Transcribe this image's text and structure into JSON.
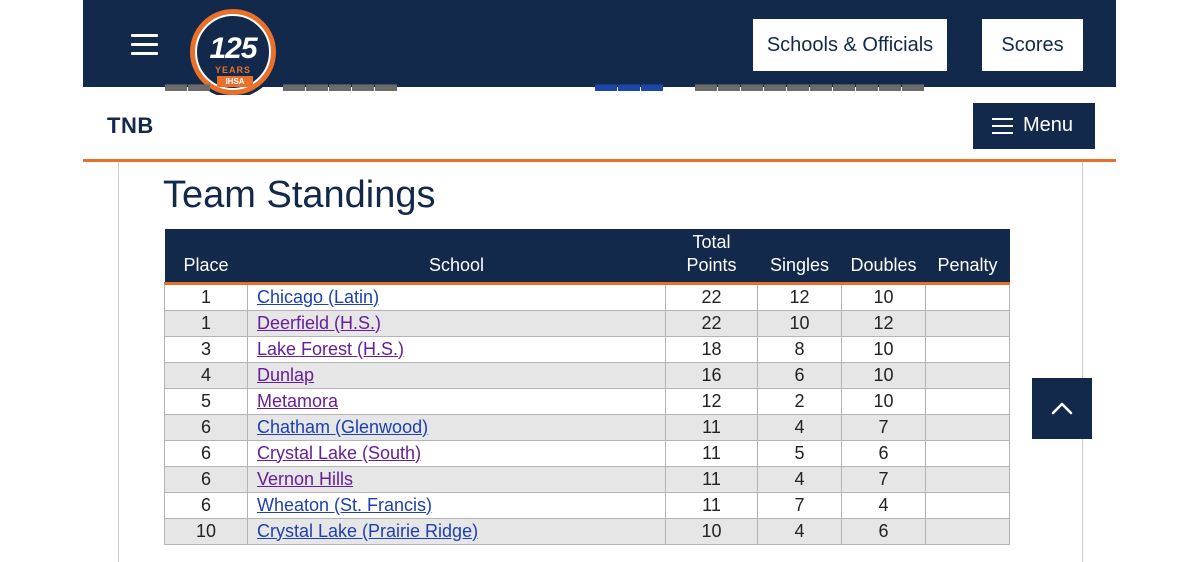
{
  "header": {
    "logo": {
      "number": "125",
      "years": "YEARS",
      "org": "IHSA"
    },
    "buttons": {
      "schools_officials": "Schools & Officials",
      "scores": "Scores"
    }
  },
  "section_nav": {
    "title": "TNB",
    "menu_label": "Menu"
  },
  "standings": {
    "heading": "Team Standings",
    "columns": [
      "Place",
      "School",
      "Total Points",
      "Singles",
      "Doubles",
      "Penalty"
    ],
    "rows": [
      {
        "place": "1",
        "school": "Chicago (Latin)",
        "total": "22",
        "singles": "12",
        "doubles": "10",
        "penalty": "",
        "visited": false
      },
      {
        "place": "1",
        "school": "Deerfield (H.S.)",
        "total": "22",
        "singles": "10",
        "doubles": "12",
        "penalty": "",
        "visited": true
      },
      {
        "place": "3",
        "school": "Lake Forest (H.S.)",
        "total": "18",
        "singles": "8",
        "doubles": "10",
        "penalty": "",
        "visited": true
      },
      {
        "place": "4",
        "school": "Dunlap",
        "total": "16",
        "singles": "6",
        "doubles": "10",
        "penalty": "",
        "visited": true
      },
      {
        "place": "5",
        "school": "Metamora",
        "total": "12",
        "singles": "2",
        "doubles": "10",
        "penalty": "",
        "visited": true
      },
      {
        "place": "6",
        "school": "Chatham (Glenwood)",
        "total": "11",
        "singles": "4",
        "doubles": "7",
        "penalty": "",
        "visited": false
      },
      {
        "place": "6",
        "school": "Crystal Lake (South)",
        "total": "11",
        "singles": "5",
        "doubles": "6",
        "penalty": "",
        "visited": true
      },
      {
        "place": "6",
        "school": "Vernon Hills",
        "total": "11",
        "singles": "4",
        "doubles": "7",
        "penalty": "",
        "visited": true
      },
      {
        "place": "6",
        "school": "Wheaton (St. Francis)",
        "total": "11",
        "singles": "7",
        "doubles": "4",
        "penalty": "",
        "visited": false
      },
      {
        "place": "10",
        "school": "Crystal Lake (Prairie Ridge)",
        "total": "10",
        "singles": "4",
        "doubles": "6",
        "penalty": "",
        "visited": false
      }
    ]
  },
  "icons": {
    "hamburger": "hamburger-menu-icon",
    "menu": "menu-bars-icon",
    "scroll_top": "chevron-up-icon"
  },
  "colors": {
    "navy": "#13294b",
    "orange": "#e8702a",
    "link_visited": "#661e99",
    "link": "#1d3fb0",
    "row_alt": "#e6e6e6"
  }
}
